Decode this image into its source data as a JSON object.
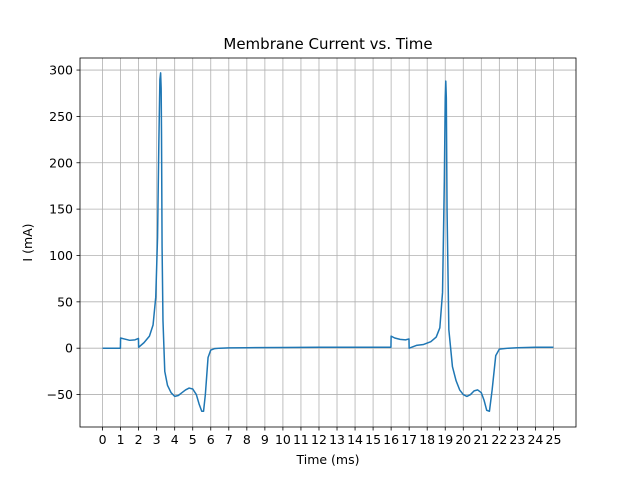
{
  "chart_data": {
    "type": "line",
    "title": "Membrane Current vs. Time",
    "xlabel": "Time (ms)",
    "ylabel": "I (mA)",
    "xlim": [
      -1.25,
      26.25
    ],
    "ylim": [
      -85,
      313
    ],
    "xticks": [
      0,
      1,
      2,
      3,
      4,
      5,
      6,
      7,
      8,
      9,
      10,
      11,
      12,
      13,
      14,
      15,
      16,
      17,
      18,
      19,
      20,
      21,
      22,
      23,
      24,
      25
    ],
    "yticks": [
      -50,
      0,
      50,
      100,
      150,
      200,
      250,
      300
    ],
    "grid": true,
    "series": [
      {
        "color": "#1f77b4",
        "x": [
          0.0,
          0.99,
          1.0,
          1.2,
          1.5,
          1.8,
          1.99,
          2.0,
          2.3,
          2.6,
          2.8,
          2.95,
          3.05,
          3.12,
          3.18,
          3.22,
          3.25,
          3.27,
          3.3,
          3.35,
          3.45,
          3.6,
          3.8,
          4.0,
          4.2,
          4.4,
          4.6,
          4.8,
          5.0,
          5.2,
          5.35,
          5.5,
          5.6,
          5.7,
          5.85,
          6.0,
          6.2,
          6.5,
          7.0,
          8.0,
          10.0,
          12.0,
          14.0,
          15.99,
          16.0,
          16.2,
          16.5,
          16.8,
          16.99,
          17.0,
          17.4,
          17.8,
          18.2,
          18.5,
          18.7,
          18.85,
          18.95,
          19.0,
          19.03,
          19.06,
          19.1,
          19.2,
          19.4,
          19.6,
          19.8,
          20.0,
          20.2,
          20.4,
          20.6,
          20.8,
          21.0,
          21.15,
          21.3,
          21.45,
          21.6,
          21.8,
          22.0,
          22.5,
          23.0,
          24.0,
          25.0
        ],
        "y": [
          0,
          0,
          11,
          10,
          8.5,
          9,
          10.5,
          1,
          6,
          13,
          25,
          55,
          120,
          220,
          290,
          297,
          280,
          230,
          110,
          30,
          -25,
          -40,
          -48,
          -52,
          -51,
          -48,
          -45,
          -43,
          -44,
          -50,
          -60,
          -68,
          -68,
          -50,
          -10,
          -2,
          -0.5,
          0,
          0.3,
          0.5,
          0.8,
          1,
          1,
          1,
          13,
          11,
          9.5,
          9,
          10,
          0,
          3,
          4,
          7,
          12,
          22,
          60,
          180,
          270,
          288,
          270,
          150,
          20,
          -20,
          -35,
          -45,
          -50,
          -52,
          -50,
          -46,
          -45,
          -48,
          -56,
          -67,
          -68,
          -45,
          -8,
          -1,
          0,
          0.5,
          1,
          1
        ]
      }
    ]
  }
}
